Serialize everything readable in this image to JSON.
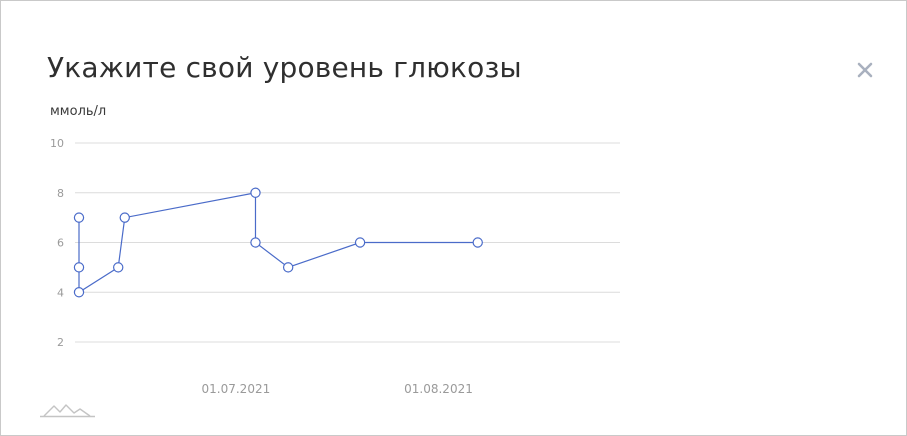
{
  "modal": {
    "title": "Укажите свой уровень глюкозы",
    "close_icon": "close-icon"
  },
  "chart_data": {
    "type": "line",
    "ylabel": "ммоль/л",
    "ylim": [
      1.4,
      10
    ],
    "y_ticks": [
      10,
      8,
      6,
      4,
      2
    ],
    "x_tick_labels": [
      {
        "date": "2021-07-01",
        "label": "01.07.2021"
      },
      {
        "date": "2021-08-01",
        "label": "01.08.2021"
      }
    ],
    "x_range": [
      "2021-06-07",
      "2021-08-28"
    ],
    "grid": true,
    "series": [
      {
        "color": "#4a6bc9",
        "points": [
          {
            "x": "2021-06-07",
            "y": 7
          },
          {
            "x": "2021-06-07",
            "y": 5
          },
          {
            "x": "2021-06-07",
            "y": 4
          },
          {
            "x": "2021-06-13",
            "y": 5
          },
          {
            "x": "2021-06-14",
            "y": 7
          },
          {
            "x": "2021-07-04",
            "y": 8
          },
          {
            "x": "2021-07-04",
            "y": 6
          },
          {
            "x": "2021-07-09",
            "y": 5
          },
          {
            "x": "2021-07-20",
            "y": 6
          },
          {
            "x": "2021-08-07",
            "y": 6
          }
        ]
      }
    ]
  },
  "footer": {
    "logo_icon": "mountain-logo-icon"
  }
}
